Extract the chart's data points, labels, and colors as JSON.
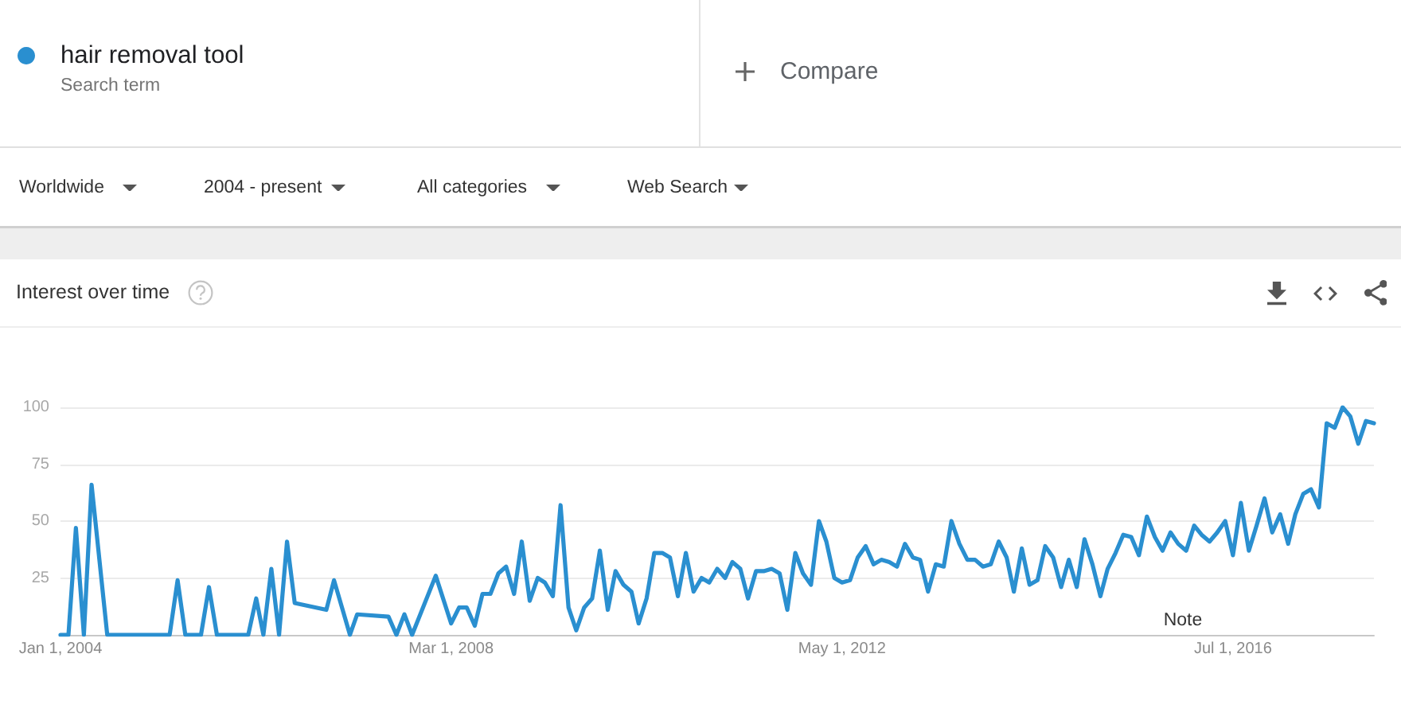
{
  "chart_data": {
    "type": "line",
    "title": "Interest over time",
    "annotations": [
      "Search term",
      "Compare",
      "Worldwide",
      "2004 - present",
      "All categories",
      "Web Search",
      "Note"
    ],
    "x": [
      "2004-01",
      "2004-02",
      "2004-03",
      "2004-04",
      "2004-05",
      "2004-07",
      "2005-03",
      "2005-04",
      "2005-05",
      "2005-07",
      "2005-08",
      "2005-09",
      "2006-01",
      "2006-02",
      "2006-03",
      "2006-04",
      "2006-05",
      "2006-06",
      "2006-07",
      "2006-11",
      "2006-12",
      "2007-02",
      "2007-03",
      "2007-07",
      "2007-08",
      "2007-09",
      "2007-10",
      "2008-01",
      "2008-03",
      "2008-04",
      "2008-05",
      "2008-06",
      "2008-07",
      "2008-08",
      "2008-09",
      "2008-10",
      "2008-11",
      "2008-12",
      "2009-01",
      "2009-02",
      "2009-03",
      "2009-04",
      "2009-05",
      "2009-06",
      "2009-07",
      "2009-08",
      "2009-09",
      "2009-10",
      "2009-11",
      "2009-12",
      "2010-01",
      "2010-02",
      "2010-03",
      "2010-04",
      "2010-05",
      "2010-06",
      "2010-07",
      "2010-08",
      "2010-09",
      "2010-10",
      "2010-11",
      "2010-12",
      "2011-01",
      "2011-02",
      "2011-03",
      "2011-04",
      "2011-05",
      "2011-06",
      "2011-07",
      "2011-08",
      "2011-09",
      "2011-10",
      "2011-11",
      "2011-12",
      "2012-01",
      "2012-02",
      "2012-03",
      "2012-04",
      "2012-05",
      "2012-06",
      "2012-07",
      "2012-08",
      "2012-09",
      "2012-10",
      "2012-11",
      "2012-12",
      "2013-01",
      "2013-02",
      "2013-03",
      "2013-04",
      "2013-05",
      "2013-06",
      "2013-07",
      "2013-08",
      "2013-09",
      "2013-10",
      "2013-11",
      "2013-12",
      "2014-01",
      "2014-02",
      "2014-03",
      "2014-04",
      "2014-05",
      "2014-06",
      "2014-07",
      "2014-08",
      "2014-09",
      "2014-10",
      "2014-11",
      "2014-12",
      "2015-01",
      "2015-02",
      "2015-03",
      "2015-04",
      "2015-05",
      "2015-06",
      "2015-07",
      "2015-08",
      "2015-09",
      "2015-10",
      "2015-11",
      "2015-12",
      "2016-01",
      "2016-02",
      "2016-03",
      "2016-04",
      "2016-05",
      "2016-06",
      "2016-07",
      "2016-08",
      "2016-09",
      "2016-10",
      "2016-11",
      "2016-12",
      "2017-01",
      "2017-02",
      "2017-03",
      "2017-04",
      "2017-05",
      "2017-06",
      "2017-07",
      "2017-08",
      "2017-09",
      "2017-10",
      "2017-11",
      "2017-12",
      "2018-01"
    ],
    "series": [
      {
        "name": "hair removal tool",
        "color": "#2a8fd0",
        "values": [
          0,
          0,
          47,
          0,
          66,
          0,
          0,
          24,
          0,
          0,
          21,
          0,
          0,
          16,
          0,
          29,
          0,
          41,
          14,
          11,
          24,
          0,
          9,
          8,
          0,
          9,
          0,
          26,
          5,
          12,
          12,
          4,
          18,
          18,
          27,
          30,
          18,
          41,
          15,
          25,
          23,
          17,
          57,
          12,
          2,
          12,
          16,
          37,
          11,
          28,
          22,
          19,
          5,
          16,
          36,
          36,
          34,
          17,
          36,
          19,
          25,
          23,
          29,
          25,
          32,
          29,
          16,
          28,
          28,
          29,
          27,
          11,
          36,
          27,
          22,
          50,
          41,
          25,
          23,
          24,
          34,
          39,
          31,
          33,
          32,
          30,
          40,
          34,
          33,
          19,
          31,
          30,
          50,
          40,
          33,
          33,
          30,
          31,
          41,
          34,
          19,
          38,
          22,
          24,
          39,
          34,
          21,
          33,
          21,
          42,
          31,
          17,
          29,
          36,
          44,
          43,
          35,
          52,
          43,
          37,
          45,
          40,
          37,
          48,
          44,
          41,
          45,
          50,
          35,
          58,
          37,
          48,
          60,
          45,
          53,
          40,
          53,
          62,
          64,
          56,
          93,
          91,
          100,
          96,
          84,
          94,
          93
        ]
      }
    ],
    "xlim": [
      "2004-01",
      "2018-01"
    ],
    "xticks": [
      {
        "value": "2004-01",
        "label": "Jan 1, 2004"
      },
      {
        "value": "2008-03",
        "label": "Mar 1, 2008"
      },
      {
        "value": "2012-05",
        "label": "May 1, 2012"
      },
      {
        "value": "2016-07",
        "label": "Jul 1, 2016"
      }
    ],
    "ylim": [
      0,
      100
    ],
    "yticks": [
      {
        "value": 0,
        "label": null
      },
      25,
      50,
      75,
      100
    ],
    "grid": "y",
    "legend": "top left",
    "marker": "none",
    "line_style": "solid"
  }
}
